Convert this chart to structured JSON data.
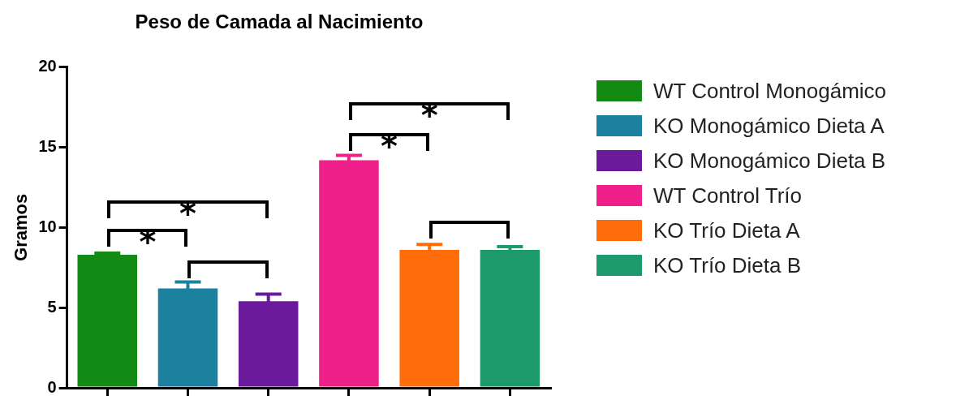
{
  "chart_data": {
    "type": "bar",
    "title": "Peso de Camada al Nacimiento",
    "ylabel": "Gramos",
    "categories": [
      null,
      null,
      null,
      null,
      null,
      null
    ],
    "series": [
      {
        "name": "WT Control Monogámico",
        "color": "#138a13",
        "values": [
          8.3,
          null,
          null,
          null,
          null,
          null
        ],
        "errors": [
          0.1,
          null,
          null,
          null,
          null,
          null
        ]
      },
      {
        "name": "KO Monogámico Dieta A",
        "color": "#1b819e",
        "values": [
          null,
          6.2,
          null,
          null,
          null,
          null
        ],
        "errors": [
          null,
          0.4,
          null,
          null,
          null,
          null
        ]
      },
      {
        "name": "KO Monogámico Dieta B",
        "color": "#6c1a9c",
        "values": [
          null,
          null,
          5.4,
          null,
          null,
          null
        ],
        "errors": [
          null,
          null,
          0.45,
          null,
          null,
          null
        ]
      },
      {
        "name": "WT Control Trío",
        "color": "#f0208a",
        "values": [
          null,
          null,
          null,
          14.2,
          null,
          null
        ],
        "errors": [
          null,
          null,
          null,
          0.3,
          null,
          null
        ]
      },
      {
        "name": "KO Trío Dieta A",
        "color": "#ff6c0a",
        "values": [
          null,
          null,
          null,
          null,
          8.6,
          null
        ],
        "errors": [
          null,
          null,
          null,
          null,
          0.35,
          null
        ]
      },
      {
        "name": "KO Trío Dieta B",
        "color": "#1d9a6c",
        "values": [
          null,
          null,
          null,
          null,
          null,
          8.6
        ],
        "errors": [
          null,
          null,
          null,
          null,
          null,
          0.2
        ]
      }
    ],
    "stacked": true,
    "ylim": [
      0,
      20
    ],
    "yticks": [
      0,
      5,
      10,
      15,
      20
    ],
    "grid": false,
    "legend": "right",
    "tick_labels": "y",
    "annotations": [
      "*",
      "*",
      "*",
      "*"
    ]
  }
}
